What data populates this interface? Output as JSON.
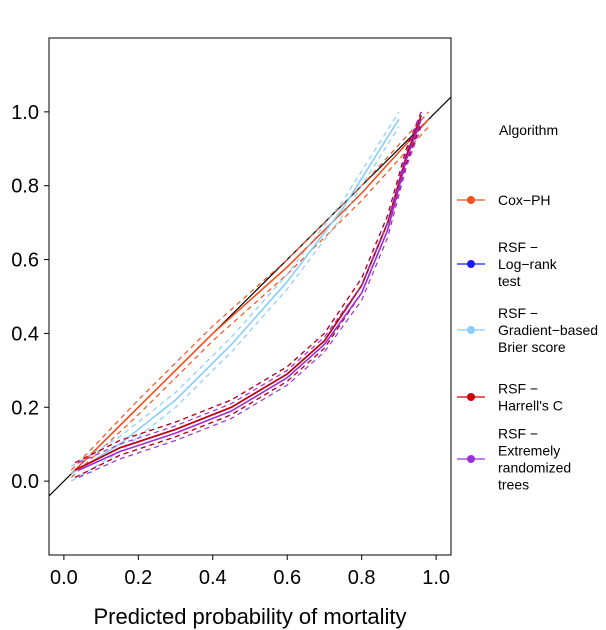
{
  "chart_data": {
    "type": "line",
    "title": "",
    "xlabel": "Predicted probability of mortality",
    "ylabel": "",
    "xlim": [
      -0.04,
      1.04
    ],
    "ylim": [
      -0.2,
      1.2
    ],
    "xticks": [
      "0.0",
      "0.2",
      "0.4",
      "0.6",
      "0.8",
      "1.0"
    ],
    "yticks": [
      "0.0",
      "0.2",
      "0.4",
      "0.6",
      "0.8",
      "1.0"
    ],
    "grid": false,
    "legend_title": "Algorithm",
    "legend_position": "right",
    "reference_line": {
      "x": [
        -0.04,
        1.04
      ],
      "y": [
        -0.04,
        1.04
      ],
      "color": "#000000"
    },
    "series": [
      {
        "name": "Cox−PH",
        "label_lines": [
          "Cox−PH"
        ],
        "color": "#f4511e",
        "x": [
          0.02,
          0.2,
          0.4,
          0.6,
          0.8,
          0.98
        ],
        "y": [
          0.02,
          0.2,
          0.4,
          0.58,
          0.78,
          0.98
        ],
        "lower": [
          0.01,
          0.18,
          0.38,
          0.56,
          0.76,
          0.96
        ],
        "upper": [
          0.03,
          0.22,
          0.42,
          0.6,
          0.8,
          1.0
        ]
      },
      {
        "name": "RSF − Log−rank test",
        "label_lines": [
          "RSF −",
          "Log−rank",
          "test"
        ],
        "color": "#1a1aff",
        "x": [
          0.03,
          0.15,
          0.3,
          0.45,
          0.6,
          0.7,
          0.8,
          0.87,
          0.92,
          0.96
        ],
        "y": [
          0.03,
          0.09,
          0.14,
          0.2,
          0.29,
          0.38,
          0.53,
          0.7,
          0.88,
          0.99
        ],
        "lower": [
          0.01,
          0.07,
          0.12,
          0.18,
          0.27,
          0.36,
          0.51,
          0.68,
          0.86,
          0.97
        ],
        "upper": [
          0.05,
          0.11,
          0.16,
          0.22,
          0.31,
          0.4,
          0.55,
          0.72,
          0.9,
          1.0
        ]
      },
      {
        "name": "RSF − Gradient−based Brier score",
        "label_lines": [
          "RSF −",
          "Gradient−based",
          "Brier score"
        ],
        "color": "#87cefa",
        "x": [
          0.02,
          0.15,
          0.3,
          0.45,
          0.6,
          0.75,
          0.9
        ],
        "y": [
          0.02,
          0.1,
          0.22,
          0.37,
          0.54,
          0.74,
          0.98
        ],
        "lower": [
          0.0,
          0.08,
          0.2,
          0.35,
          0.52,
          0.72,
          0.96
        ],
        "upper": [
          0.04,
          0.12,
          0.24,
          0.39,
          0.56,
          0.76,
          1.0
        ]
      },
      {
        "name": "RSF − Harrell's C",
        "label_lines": [
          "RSF −",
          "Harrell's C"
        ],
        "color": "#cc0000",
        "x": [
          0.03,
          0.15,
          0.3,
          0.45,
          0.6,
          0.7,
          0.8,
          0.87,
          0.92,
          0.96
        ],
        "y": [
          0.03,
          0.09,
          0.14,
          0.2,
          0.29,
          0.38,
          0.53,
          0.7,
          0.88,
          0.99
        ],
        "lower": [
          0.01,
          0.07,
          0.12,
          0.18,
          0.27,
          0.36,
          0.51,
          0.68,
          0.86,
          0.97
        ],
        "upper": [
          0.05,
          0.11,
          0.16,
          0.22,
          0.31,
          0.4,
          0.55,
          0.72,
          0.9,
          1.0
        ]
      },
      {
        "name": "RSF − Extremely randomized trees",
        "label_lines": [
          "RSF −",
          "Extremely",
          "randomized",
          "trees"
        ],
        "color": "#9b30d9",
        "x": [
          0.04,
          0.15,
          0.3,
          0.45,
          0.6,
          0.7,
          0.8,
          0.87,
          0.92,
          0.96
        ],
        "y": [
          0.03,
          0.08,
          0.13,
          0.19,
          0.28,
          0.37,
          0.51,
          0.68,
          0.87,
          0.98
        ],
        "lower": [
          0.01,
          0.06,
          0.11,
          0.17,
          0.26,
          0.35,
          0.49,
          0.66,
          0.85,
          0.96
        ],
        "upper": [
          0.05,
          0.1,
          0.15,
          0.21,
          0.3,
          0.39,
          0.53,
          0.7,
          0.89,
          1.0
        ]
      }
    ]
  }
}
